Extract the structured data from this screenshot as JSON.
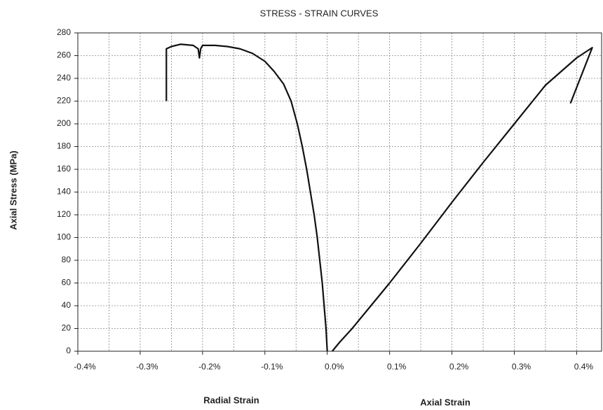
{
  "chart_data": {
    "type": "line",
    "title": "STRESS - STRAIN CURVES",
    "ylabel": "Axial Stress (MPa)",
    "xlabels": [
      "Radial Strain",
      "Axial Strain"
    ],
    "xlim": [
      -0.4,
      0.44
    ],
    "xticks": [
      {
        "value": -0.4,
        "label": "-0.4%"
      },
      {
        "value": -0.3,
        "label": "-0.3%"
      },
      {
        "value": -0.2,
        "label": "-0.2%"
      },
      {
        "value": -0.1,
        "label": "-0.1%"
      },
      {
        "value": 0,
        "label": "0.0%"
      },
      {
        "value": 0.1,
        "label": "0.1%"
      },
      {
        "value": 0.2,
        "label": "0.2%"
      },
      {
        "value": 0.3,
        "label": "0.3%"
      },
      {
        "value": 0.4,
        "label": "0.4%"
      }
    ],
    "xminor": [
      -0.35,
      -0.25,
      -0.15,
      -0.05,
      0.05,
      0.15,
      0.25,
      0.35
    ],
    "ylim": [
      0,
      280
    ],
    "yticks": [
      0,
      20,
      40,
      60,
      80,
      100,
      120,
      140,
      160,
      180,
      200,
      220,
      240,
      260,
      280
    ],
    "grid": true,
    "series": [
      {
        "color": "#111111",
        "x": [
          0,
          -0.002,
          -0.005,
          -0.008,
          -0.012,
          -0.016,
          -0.021,
          -0.027,
          -0.033,
          -0.04,
          -0.048,
          -0.058,
          -0.07,
          -0.085,
          -0.1,
          -0.12,
          -0.14,
          -0.16,
          -0.18,
          -0.2,
          -0.203,
          -0.205,
          -0.207,
          -0.215,
          -0.235,
          -0.25,
          -0.258,
          -0.258
        ],
        "values": [
          0,
          20,
          40,
          60,
          80,
          100,
          120,
          140,
          160,
          180,
          200,
          220,
          235,
          246,
          255,
          262,
          266,
          268,
          269,
          269,
          266,
          258,
          266,
          269,
          270,
          268,
          266,
          220
        ]
      },
      {
        "color": "#111111",
        "x": [
          0.008,
          0.02,
          0.04,
          0.07,
          0.1,
          0.15,
          0.2,
          0.25,
          0.3,
          0.35,
          0.4,
          0.425,
          0.39
        ],
        "values": [
          0,
          8,
          20,
          40,
          60,
          95,
          131,
          166,
          200,
          234,
          258,
          267,
          218
        ]
      }
    ]
  }
}
